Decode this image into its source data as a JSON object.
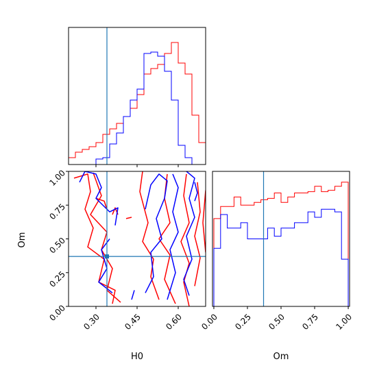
{
  "chart_data": {
    "type": "corner",
    "parameters": [
      "H0",
      "Om"
    ],
    "truth": {
      "H0": 0.34,
      "Om": 0.37
    },
    "colors": {
      "red_series": "#ff0000",
      "blue_series": "#0000ff",
      "truth_line": "#1f77b4"
    },
    "panels": [
      {
        "id": "hist_H0",
        "type": "histogram",
        "xlim": [
          0.2,
          0.7
        ],
        "ylim": [
          0,
          1
        ],
        "bin_edges": [
          0.2,
          0.2125,
          0.225,
          0.2375,
          0.25,
          0.2625,
          0.275,
          0.2875,
          0.3,
          0.3125,
          0.325,
          0.3375,
          0.35,
          0.3625,
          0.375,
          0.3875,
          0.4,
          0.4125,
          0.425,
          0.4375,
          0.45,
          0.4625,
          0.475,
          0.4875,
          0.5,
          0.5125,
          0.525,
          0.5375,
          0.55,
          0.5625,
          0.575,
          0.5875,
          0.6,
          0.6125,
          0.625,
          0.6375,
          0.65,
          0.6625,
          0.675,
          0.6875,
          0.7
        ],
        "series": [
          {
            "color": "#ff0000",
            "values": [
              0.05,
              0.05,
              0.09,
              0.09,
              0.11,
              0.11,
              0.13,
              0.13,
              0.16,
              0.16,
              0.22,
              0.22,
              0.26,
              0.26,
              0.3,
              0.3,
              0.35,
              0.35,
              0.41,
              0.41,
              0.51,
              0.51,
              0.66,
              0.66,
              0.7,
              0.7,
              0.73,
              0.73,
              0.81,
              0.81,
              0.89,
              0.89,
              0.74,
              0.74,
              0.66,
              0.66,
              0.36,
              0.36,
              0.16,
              0.16
            ]
          },
          {
            "color": "#0000ff",
            "values": [
              0.0,
              0.0,
              0.0,
              0.0,
              0.0,
              0.0,
              0.0,
              0.0,
              0.04,
              0.04,
              0.05,
              0.05,
              0.15,
              0.15,
              0.23,
              0.23,
              0.35,
              0.35,
              0.47,
              0.47,
              0.55,
              0.55,
              0.81,
              0.81,
              0.82,
              0.82,
              0.79,
              0.79,
              0.68,
              0.68,
              0.47,
              0.47,
              0.14,
              0.14,
              0.05,
              0.05,
              0.0,
              0.0,
              0.0,
              0.0
            ]
          }
        ]
      },
      {
        "id": "contour_H0_Om",
        "type": "contour",
        "xlabel": "H0",
        "ylabel": "Om",
        "xlim": [
          0.2,
          0.7
        ],
        "ylim": [
          0,
          1
        ],
        "xticks": [
          0.3,
          0.45,
          0.6
        ],
        "xticklabels": [
          "0.30",
          "0.45",
          "0.60"
        ],
        "yticks": [
          0,
          0.25,
          0.5,
          0.75,
          1.0
        ],
        "yticklabels": [
          "0.00",
          "0.25",
          "0.50",
          "0.75",
          "1.00"
        ],
        "series": [
          {
            "color": "#ff0000",
            "contours": [
              [
                [
                  0.22,
                  0.95
                ],
                [
                  0.27,
                  0.98
                ],
                [
                  0.28,
                  0.85
                ],
                [
                  0.26,
                  0.72
                ],
                [
                  0.29,
                  0.58
                ],
                [
                  0.27,
                  0.44
                ],
                [
                  0.33,
                  0.35
                ],
                [
                  0.31,
                  0.18
                ],
                [
                  0.37,
                  0.12
                ],
                [
                  0.36,
                  0.02
                ]
              ],
              [
                [
                  0.29,
                  0.99
                ],
                [
                  0.32,
                  0.82
                ],
                [
                  0.28,
                  0.68
                ],
                [
                  0.34,
                  0.55
                ],
                [
                  0.32,
                  0.42
                ],
                [
                  0.36,
                  0.28
                ],
                [
                  0.34,
                  0.12
                ],
                [
                  0.39,
                  0.03
                ]
              ],
              [
                [
                  0.3,
                  0.8
                ],
                [
                  0.33,
                  0.78
                ],
                [
                  0.34,
                  0.72
                ]
              ],
              [
                [
                  0.47,
                  1.0
                ],
                [
                  0.46,
                  0.85
                ],
                [
                  0.49,
                  0.62
                ],
                [
                  0.47,
                  0.48
                ],
                [
                  0.51,
                  0.35
                ],
                [
                  0.5,
                  0.22
                ],
                [
                  0.53,
                  0.05
                ]
              ],
              [
                [
                  0.56,
                  0.98
                ],
                [
                  0.55,
                  0.8
                ],
                [
                  0.57,
                  0.62
                ],
                [
                  0.53,
                  0.5
                ],
                [
                  0.57,
                  0.38
                ],
                [
                  0.55,
                  0.2
                ],
                [
                  0.59,
                  0.02
                ]
              ],
              [
                [
                  0.63,
                  0.98
                ],
                [
                  0.62,
                  0.82
                ],
                [
                  0.64,
                  0.62
                ],
                [
                  0.61,
                  0.48
                ],
                [
                  0.64,
                  0.32
                ],
                [
                  0.62,
                  0.18
                ],
                [
                  0.64,
                  0.0
                ]
              ],
              [
                [
                  0.67,
                  0.92
                ],
                [
                  0.68,
                  0.7
                ],
                [
                  0.66,
                  0.52
                ],
                [
                  0.68,
                  0.36
                ],
                [
                  0.66,
                  0.15
                ]
              ],
              [
                [
                  0.7,
                  0.86
                ],
                [
                  0.69,
                  0.62
                ],
                [
                  0.7,
                  0.4
                ]
              ],
              [
                [
                  0.36,
                  0.68
                ],
                [
                  0.37,
                  0.73
                ],
                [
                  0.38,
                  0.68
                ]
              ],
              [
                [
                  0.41,
                  0.65
                ],
                [
                  0.43,
                  0.66
                ]
              ]
            ]
          },
          {
            "color": "#0000ff",
            "contours": [
              [
                [
                  0.24,
                  0.92
                ],
                [
                  0.26,
                  1.0
                ],
                [
                  0.3,
                  0.98
                ],
                [
                  0.32,
                  0.88
                ],
                [
                  0.3,
                  0.8
                ],
                [
                  0.35,
                  0.7
                ],
                [
                  0.38,
                  0.73
                ],
                [
                  0.37,
                  0.6
                ]
              ],
              [
                [
                  0.35,
                  0.5
                ],
                [
                  0.32,
                  0.42
                ],
                [
                  0.34,
                  0.28
                ],
                [
                  0.31,
                  0.18
                ],
                [
                  0.36,
                  0.1
                ]
              ],
              [
                [
                  0.43,
                  0.05
                ],
                [
                  0.44,
                  0.12
                ]
              ],
              [
                [
                  0.48,
                  0.72
                ],
                [
                  0.5,
                  0.9
                ],
                [
                  0.53,
                  0.98
                ],
                [
                  0.56,
                  0.93
                ],
                [
                  0.55,
                  0.8
                ],
                [
                  0.52,
                  0.65
                ],
                [
                  0.54,
                  0.5
                ],
                [
                  0.5,
                  0.4
                ],
                [
                  0.51,
                  0.22
                ],
                [
                  0.48,
                  0.1
                ]
              ],
              [
                [
                  0.58,
                  0.98
                ],
                [
                  0.6,
                  0.88
                ],
                [
                  0.58,
                  0.7
                ],
                [
                  0.6,
                  0.55
                ],
                [
                  0.57,
                  0.42
                ],
                [
                  0.59,
                  0.25
                ],
                [
                  0.56,
                  0.05
                ]
              ],
              [
                [
                  0.63,
                  1.0
                ],
                [
                  0.66,
                  0.95
                ],
                [
                  0.64,
                  0.8
                ],
                [
                  0.66,
                  0.66
                ],
                [
                  0.63,
                  0.52
                ],
                [
                  0.65,
                  0.35
                ],
                [
                  0.62,
                  0.2
                ],
                [
                  0.64,
                  0.08
                ]
              ],
              [
                [
                  0.66,
                  0.92
                ],
                [
                  0.67,
                  0.84
                ],
                [
                  0.66,
                  0.78
                ]
              ]
            ]
          }
        ]
      },
      {
        "id": "hist_Om",
        "type": "histogram",
        "xlabel": "Om",
        "xlim": [
          -0.01,
          1.01
        ],
        "ylim": [
          0,
          1
        ],
        "xticks": [
          0,
          0.25,
          0.5,
          0.75,
          1.0
        ],
        "xticklabels": [
          "0.00",
          "0.25",
          "0.50",
          "0.75",
          "1.00"
        ],
        "bin_edges": [
          0.0,
          0.05,
          0.1,
          0.15,
          0.2,
          0.25,
          0.3,
          0.35,
          0.4,
          0.45,
          0.5,
          0.55,
          0.6,
          0.65,
          0.7,
          0.75,
          0.8,
          0.85,
          0.9,
          0.95,
          1.0
        ],
        "series": [
          {
            "color": "#ff0000",
            "values": [
              0.65,
              0.74,
              0.74,
              0.81,
              0.75,
              0.75,
              0.77,
              0.79,
              0.8,
              0.84,
              0.77,
              0.81,
              0.84,
              0.84,
              0.85,
              0.89,
              0.85,
              0.86,
              0.89,
              0.92
            ]
          },
          {
            "color": "#0000ff",
            "values": [
              0.43,
              0.68,
              0.58,
              0.58,
              0.62,
              0.5,
              0.5,
              0.5,
              0.58,
              0.52,
              0.58,
              0.58,
              0.62,
              0.62,
              0.7,
              0.66,
              0.72,
              0.72,
              0.7,
              0.35
            ]
          }
        ]
      }
    ]
  }
}
